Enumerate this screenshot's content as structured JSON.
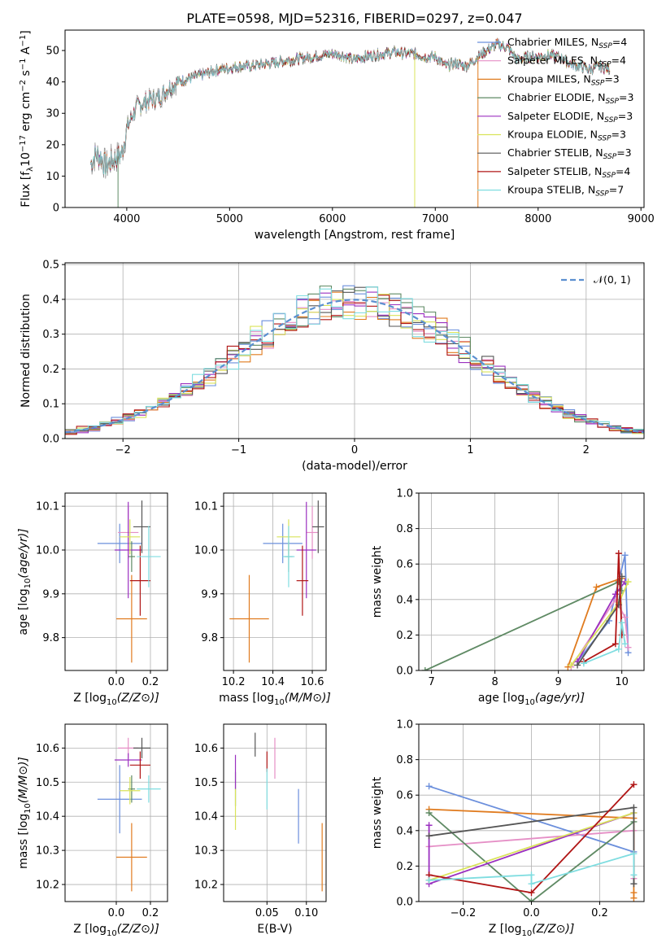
{
  "figure": {
    "title": "PLATE=0598, MJD=52316, FIBERID=0297, z=0.047"
  },
  "colors": {
    "Chabrier MILES": "#6b8fdc",
    "Salpeter MILES": "#e58fc6",
    "Kroupa MILES": "#e07b1f",
    "Chabrier ELODIE": "#5f8a64",
    "Salpeter ELODIE": "#9b30c0",
    "Kroupa ELODIE": "#d9e35a",
    "Chabrier STELIB": "#555555",
    "Salpeter STELIB": "#b01515",
    "Kroupa STELIB": "#7fdde0"
  },
  "chart_data": [
    {
      "id": "spectrum",
      "type": "line",
      "title": "PLATE=0598, MJD=52316, FIBERID=0297, z=0.047",
      "xlabel": "wavelength [Angstrom, rest frame]",
      "ylabel": "Flux [f_λ10^-17 erg cm^-2 s^-1 A^-1]",
      "xlim": [
        3400,
        9030
      ],
      "ylim": [
        0,
        56.5
      ],
      "xticks": [
        4000,
        5000,
        6000,
        7000,
        8000,
        9000
      ],
      "yticks": [
        0,
        10,
        20,
        30,
        40,
        50
      ],
      "grid": false,
      "legend_position": "right",
      "legend": [
        {
          "label": "Chabrier MILES, N",
          "sub": "SSP",
          "suffix": "=4"
        },
        {
          "label": "Salpeter MILES, N",
          "sub": "SSP",
          "suffix": "=4"
        },
        {
          "label": "Kroupa MILES, N",
          "sub": "SSP",
          "suffix": "=3"
        },
        {
          "label": "Chabrier ELODIE, N",
          "sub": "SSP",
          "suffix": "=3"
        },
        {
          "label": "Salpeter ELODIE, N",
          "sub": "SSP",
          "suffix": "=3"
        },
        {
          "label": "Kroupa ELODIE, N",
          "sub": "SSP",
          "suffix": "=3"
        },
        {
          "label": "Chabrier STELIB, N",
          "sub": "SSP",
          "suffix": "=3"
        },
        {
          "label": "Salpeter STELIB, N",
          "sub": "SSP",
          "suffix": "=4"
        },
        {
          "label": "Kroupa STELIB, N",
          "sub": "SSP",
          "suffix": "=7"
        }
      ],
      "continuum": [
        [
          3650,
          14
        ],
        [
          3700,
          17
        ],
        [
          3750,
          16
        ],
        [
          3800,
          13
        ],
        [
          3850,
          15
        ],
        [
          3900,
          16
        ],
        [
          3950,
          17
        ],
        [
          4000,
          25
        ],
        [
          4050,
          29
        ],
        [
          4100,
          32
        ],
        [
          4200,
          34
        ],
        [
          4300,
          35
        ],
        [
          4350,
          36
        ],
        [
          4400,
          38
        ],
        [
          4500,
          40
        ],
        [
          4600,
          41
        ],
        [
          4700,
          42
        ],
        [
          4800,
          43
        ],
        [
          4900,
          44
        ],
        [
          5000,
          44.5
        ],
        [
          5100,
          45
        ],
        [
          5200,
          45
        ],
        [
          5300,
          45.5
        ],
        [
          5400,
          46
        ],
        [
          5500,
          46.5
        ],
        [
          5600,
          47
        ],
        [
          5700,
          47.5
        ],
        [
          5800,
          48
        ],
        [
          5900,
          48.5
        ],
        [
          6000,
          49
        ],
        [
          6100,
          48.5
        ],
        [
          6200,
          47
        ],
        [
          6300,
          48
        ],
        [
          6400,
          48.5
        ],
        [
          6500,
          49
        ],
        [
          6600,
          49.5
        ],
        [
          6700,
          49
        ],
        [
          6800,
          49
        ],
        [
          6900,
          48
        ],
        [
          7000,
          48
        ],
        [
          7100,
          45
        ],
        [
          7200,
          46
        ],
        [
          7300,
          45
        ],
        [
          7400,
          47.5
        ],
        [
          7500,
          50
        ],
        [
          7600,
          52
        ],
        [
          7700,
          51
        ],
        [
          7800,
          47
        ],
        [
          7900,
          48
        ],
        [
          8000,
          48
        ],
        [
          8100,
          48.5
        ],
        [
          8200,
          48
        ],
        [
          8300,
          46
        ],
        [
          8400,
          45
        ],
        [
          8500,
          44
        ],
        [
          8600,
          45
        ],
        [
          8700,
          44
        ]
      ],
      "dropouts": [
        {
          "series": "Kroupa MILES",
          "x": 7415
        },
        {
          "series": "Kroupa ELODIE",
          "x": 6800
        },
        {
          "series": "Chabrier ELODIE",
          "x": 3915
        }
      ]
    },
    {
      "id": "residual_hist",
      "type": "line",
      "xlabel": "(data-model)/error",
      "ylabel": "Normed distribution",
      "xlim": [
        -2.5,
        2.5
      ],
      "ylim": [
        0,
        0.505
      ],
      "xticks": [
        -2,
        -1,
        0,
        1,
        2
      ],
      "yticks": [
        0.0,
        0.1,
        0.2,
        0.3,
        0.4,
        0.5
      ],
      "grid": true,
      "legend_position": "top-right",
      "reference": {
        "label": "𝒩(0, 1)",
        "mu": 0,
        "sigma": 1
      },
      "bin_width": 0.1,
      "series_note": "step histograms scattered around the normal curve"
    },
    {
      "id": "age_vs_Z",
      "type": "scatter",
      "xlabel": "Z [log10(Z/Z⊙)]",
      "ylabel": "age  [log10(age/yr)]",
      "xlim": [
        -0.3,
        0.3
      ],
      "ylim": [
        9.725,
        10.13
      ],
      "xticks": [
        0.0,
        0.2
      ],
      "yticks": [
        9.8,
        9.9,
        10.0,
        10.1
      ],
      "grid": true,
      "points": [
        {
          "series": "Chabrier MILES",
          "x": 0.02,
          "y": 10.015,
          "xerr": 0.13,
          "yerr": 0.045
        },
        {
          "series": "Salpeter MILES",
          "x": 0.07,
          "y": 10.04,
          "xerr": 0.06,
          "yerr": 0.06
        },
        {
          "series": "Kroupa MILES",
          "x": 0.09,
          "y": 9.843,
          "xerr": 0.09,
          "yerr": 0.1
        },
        {
          "series": "Chabrier ELODIE",
          "x": 0.09,
          "y": 9.985,
          "xerr": 0.02,
          "yerr": 0.035
        },
        {
          "series": "Salpeter ELODIE",
          "x": 0.07,
          "y": 10.0,
          "xerr": 0.08,
          "yerr": 0.11
        },
        {
          "series": "Kroupa ELODIE",
          "x": 0.08,
          "y": 10.03,
          "xerr": 0.06,
          "yerr": 0.04
        },
        {
          "series": "Chabrier STELIB",
          "x": 0.15,
          "y": 10.053,
          "xerr": 0.05,
          "yerr": 0.06
        },
        {
          "series": "Salpeter STELIB",
          "x": 0.14,
          "y": 9.93,
          "xerr": 0.06,
          "yerr": 0.08
        },
        {
          "series": "Kroupa STELIB",
          "x": 0.19,
          "y": 9.985,
          "xerr": 0.07,
          "yerr": 0.07
        }
      ]
    },
    {
      "id": "age_vs_mass",
      "type": "scatter",
      "xlabel": "mass [log10(M/M⊙)]",
      "ylabel": "",
      "xlim": [
        10.15,
        10.67
      ],
      "ylim": [
        9.725,
        10.13
      ],
      "xticks": [
        10.2,
        10.4,
        10.6
      ],
      "yticks": [
        9.8,
        9.9,
        10.0,
        10.1
      ],
      "grid": true,
      "points": [
        {
          "series": "Chabrier MILES",
          "x": 10.45,
          "y": 10.015,
          "xerr": 0.1,
          "yerr": 0.045
        },
        {
          "series": "Salpeter MILES",
          "x": 10.6,
          "y": 10.04,
          "xerr": 0.03,
          "yerr": 0.06
        },
        {
          "series": "Kroupa MILES",
          "x": 10.28,
          "y": 9.843,
          "xerr": 0.1,
          "yerr": 0.1
        },
        {
          "series": "Chabrier ELODIE",
          "x": 10.48,
          "y": 9.985,
          "xerr": 0.02,
          "yerr": 0.035
        },
        {
          "series": "Salpeter ELODIE",
          "x": 10.57,
          "y": 10.0,
          "xerr": 0.05,
          "yerr": 0.11
        },
        {
          "series": "Kroupa ELODIE",
          "x": 10.48,
          "y": 10.03,
          "xerr": 0.06,
          "yerr": 0.04
        },
        {
          "series": "Chabrier STELIB",
          "x": 10.63,
          "y": 10.053,
          "xerr": 0.03,
          "yerr": 0.06
        },
        {
          "series": "Salpeter STELIB",
          "x": 10.55,
          "y": 9.93,
          "xerr": 0.03,
          "yerr": 0.08
        },
        {
          "series": "Kroupa STELIB",
          "x": 10.48,
          "y": 9.985,
          "xerr": 0.03,
          "yerr": 0.07
        }
      ]
    },
    {
      "id": "weight_vs_age",
      "type": "line",
      "xlabel": "age  [log10(age/yr)]",
      "ylabel": "mass weight",
      "xlim": [
        6.8,
        10.35
      ],
      "ylim": [
        0,
        1.0
      ],
      "xticks": [
        7,
        8,
        9,
        10
      ],
      "yticks": [
        0.0,
        0.2,
        0.4,
        0.6,
        0.8,
        1.0
      ],
      "grid": true,
      "series": [
        {
          "name": "Chabrier MILES",
          "x": [
            9.3,
            9.8,
            10.05,
            10.1
          ],
          "y": [
            0.05,
            0.28,
            0.65,
            0.1
          ]
        },
        {
          "name": "Salpeter MILES",
          "x": [
            9.2,
            9.9,
            10.05,
            10.1
          ],
          "y": [
            0.02,
            0.4,
            0.3,
            0.13
          ]
        },
        {
          "name": "Kroupa MILES",
          "x": [
            9.15,
            9.6,
            10.0
          ],
          "y": [
            0.02,
            0.47,
            0.52
          ]
        },
        {
          "name": "Chabrier ELODIE",
          "x": [
            6.9,
            9.95,
            10.0
          ],
          "y": [
            0.0,
            0.5,
            0.45
          ]
        },
        {
          "name": "Salpeter ELODIE",
          "x": [
            9.3,
            9.9,
            10.05
          ],
          "y": [
            0.05,
            0.43,
            0.5
          ]
        },
        {
          "name": "Kroupa ELODIE",
          "x": [
            9.2,
            9.95,
            10.1
          ],
          "y": [
            0.03,
            0.38,
            0.5
          ]
        },
        {
          "name": "Chabrier STELIB",
          "x": [
            9.3,
            9.95,
            10.0
          ],
          "y": [
            0.03,
            0.37,
            0.53
          ]
        },
        {
          "name": "Salpeter STELIB",
          "x": [
            9.4,
            9.9,
            9.95,
            10.0
          ],
          "y": [
            0.05,
            0.15,
            0.66,
            0.2
          ]
        },
        {
          "name": "Kroupa STELIB",
          "x": [
            9.4,
            9.95,
            10.0,
            10.05
          ],
          "y": [
            0.04,
            0.12,
            0.27,
            0.15
          ]
        }
      ]
    },
    {
      "id": "mass_vs_Z",
      "type": "scatter",
      "xlabel": "Z [log10(Z/Z⊙)]",
      "ylabel": "mass [log10(M/M⊙)]",
      "xlim": [
        -0.3,
        0.3
      ],
      "ylim": [
        10.15,
        10.67
      ],
      "xticks": [
        0.0,
        0.2
      ],
      "yticks": [
        10.2,
        10.3,
        10.4,
        10.5,
        10.6
      ],
      "grid": true,
      "points": [
        {
          "series": "Chabrier MILES",
          "x": 0.02,
          "y": 10.45,
          "xerr": 0.13,
          "yerr": 0.1
        },
        {
          "series": "Salpeter MILES",
          "x": 0.07,
          "y": 10.6,
          "xerr": 0.06,
          "yerr": 0.03
        },
        {
          "series": "Kroupa MILES",
          "x": 0.09,
          "y": 10.28,
          "xerr": 0.09,
          "yerr": 0.1
        },
        {
          "series": "Chabrier ELODIE",
          "x": 0.09,
          "y": 10.48,
          "xerr": 0.02,
          "yerr": 0.04
        },
        {
          "series": "Salpeter ELODIE",
          "x": 0.07,
          "y": 10.565,
          "xerr": 0.08,
          "yerr": 0.02
        },
        {
          "series": "Kroupa ELODIE",
          "x": 0.08,
          "y": 10.475,
          "xerr": 0.06,
          "yerr": 0.04
        },
        {
          "series": "Chabrier STELIB",
          "x": 0.15,
          "y": 10.6,
          "xerr": 0.05,
          "yerr": 0.03
        },
        {
          "series": "Salpeter STELIB",
          "x": 0.14,
          "y": 10.55,
          "xerr": 0.06,
          "yerr": 0.04
        },
        {
          "series": "Kroupa STELIB",
          "x": 0.19,
          "y": 10.48,
          "xerr": 0.07,
          "yerr": 0.04
        }
      ]
    },
    {
      "id": "mass_vs_ebv",
      "type": "scatter",
      "xlabel": "E(B-V)",
      "ylabel": "",
      "xlim": [
        -0.005,
        0.125
      ],
      "ylim": [
        10.15,
        10.67
      ],
      "xticks": [
        0.05,
        0.1
      ],
      "yticks": [
        10.2,
        10.3,
        10.4,
        10.5,
        10.6
      ],
      "grid": true,
      "points": [
        {
          "series": "Chabrier MILES",
          "x": 0.09,
          "y": 10.4,
          "xerr": 0,
          "yerr": 0.08
        },
        {
          "series": "Salpeter MILES",
          "x": 0.06,
          "y": 10.57,
          "xerr": 0,
          "yerr": 0.06
        },
        {
          "series": "Kroupa MILES",
          "x": 0.12,
          "y": 10.28,
          "xerr": 0,
          "yerr": 0.1
        },
        {
          "series": "Chabrier ELODIE",
          "x": 0.01,
          "y": 10.48,
          "xerr": 0,
          "yerr": 0.05
        },
        {
          "series": "Salpeter ELODIE",
          "x": 0.01,
          "y": 10.53,
          "xerr": 0,
          "yerr": 0.05
        },
        {
          "series": "Kroupa ELODIE",
          "x": 0.01,
          "y": 10.42,
          "xerr": 0,
          "yerr": 0.06
        },
        {
          "series": "Chabrier STELIB",
          "x": 0.035,
          "y": 10.61,
          "xerr": 0,
          "yerr": 0.035
        },
        {
          "series": "Salpeter STELIB",
          "x": 0.05,
          "y": 10.56,
          "xerr": 0,
          "yerr": 0.03
        },
        {
          "series": "Kroupa STELIB",
          "x": 0.05,
          "y": 10.48,
          "xerr": 0,
          "yerr": 0.06
        }
      ]
    },
    {
      "id": "weight_vs_Z",
      "type": "line",
      "xlabel": "Z [log10(Z/Z⊙)]",
      "ylabel": "mass weight",
      "xlim": [
        -0.33,
        0.33
      ],
      "ylim": [
        0,
        1.0
      ],
      "xticks": [
        -0.2,
        0.0,
        0.2
      ],
      "yticks": [
        0.0,
        0.2,
        0.4,
        0.6,
        0.8,
        1.0
      ],
      "grid": true,
      "series": [
        {
          "name": "Chabrier MILES",
          "x": [
            -0.3,
            0.3,
            0.3
          ],
          "y": [
            0.65,
            0.28,
            0.1
          ]
        },
        {
          "name": "Salpeter MILES",
          "x": [
            -0.3,
            0.3,
            0.3
          ],
          "y": [
            0.31,
            0.4,
            0.13
          ]
        },
        {
          "name": "Kroupa MILES",
          "x": [
            -0.3,
            0.3,
            0.3,
            0.3
          ],
          "y": [
            0.52,
            0.47,
            0.05,
            0.02
          ]
        },
        {
          "name": "Chabrier ELODIE",
          "x": [
            -0.3,
            0.0,
            0.3
          ],
          "y": [
            0.5,
            0.0,
            0.45
          ]
        },
        {
          "name": "Salpeter ELODIE",
          "x": [
            -0.3,
            -0.3,
            0.3
          ],
          "y": [
            0.43,
            0.1,
            0.5
          ]
        },
        {
          "name": "Kroupa ELODIE",
          "x": [
            -0.3,
            -0.3,
            0.3
          ],
          "y": [
            0.12,
            0.12,
            0.5
          ]
        },
        {
          "name": "Chabrier STELIB",
          "x": [
            -0.3,
            0.3,
            0.3
          ],
          "y": [
            0.37,
            0.53,
            0.1
          ]
        },
        {
          "name": "Salpeter STELIB",
          "x": [
            -0.3,
            0.0,
            0.3
          ],
          "y": [
            0.15,
            0.05,
            0.66
          ]
        },
        {
          "name": "Kroupa STELIB",
          "x": [
            -0.3,
            0.0,
            0.0,
            0.3,
            0.3
          ],
          "y": [
            0.12,
            0.15,
            0.1,
            0.27,
            0.15
          ]
        }
      ]
    }
  ]
}
